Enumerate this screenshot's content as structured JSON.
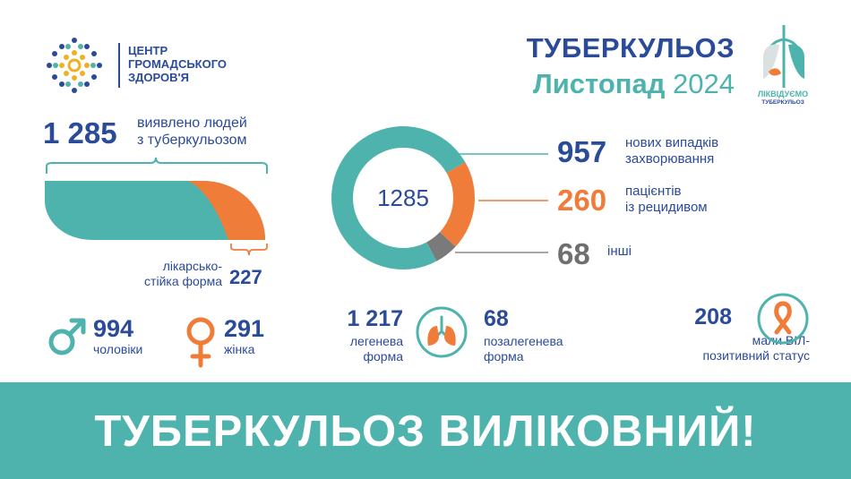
{
  "header": {
    "org_lines": [
      "ЦЕНТР",
      "ГРОМАДСЬКОГО",
      "ЗДОРОВ'Я"
    ],
    "title": "ТУБЕРКУЛЬОЗ",
    "month": "Листопад",
    "year": "2024",
    "campaign_line1": "ЛІКВІДУЄМО",
    "campaign_line2": "ТУБЕРКУЛЬОЗ"
  },
  "total": {
    "value": "1 285",
    "label_line1": "виявлено людей",
    "label_line2": "з туберкульозом"
  },
  "drug_resistant": {
    "label_line1": "лікарсько-",
    "label_line2": "стійка форма",
    "value": "227",
    "share": 0.177
  },
  "gender": {
    "men_value": "994",
    "men_label": "чоловіки",
    "women_value": "291",
    "women_label": "жінка"
  },
  "forms": {
    "pulmonary_value": "1 217",
    "pulmonary_label_line1": "легенева",
    "pulmonary_label_line2": "форма",
    "extra_value": "68",
    "extra_label_line1": "позалегенева",
    "extra_label_line2": "форма"
  },
  "hiv": {
    "value": "208",
    "label_line1": "мали ВІЛ-",
    "label_line2": "позитивний статус"
  },
  "legend": {
    "new_value": "957",
    "new_line1": "нових випадків",
    "new_line2": "захворювання",
    "relapse_value": "260",
    "relapse_line1": "пацієнтів",
    "relapse_line2": "із рецидивом",
    "other_value": "68",
    "other_line1": "інші"
  },
  "colors": {
    "navy": "#2a4a9a",
    "teal": "#4db3ac",
    "orange": "#f07c3a",
    "grey": "#7a7a7a"
  },
  "chart_data": {
    "type": "pie",
    "center_label": "1285",
    "slices": [
      {
        "name": "нових випадків захворювання",
        "value": 957,
        "color": "#4db3ac"
      },
      {
        "name": "пацієнтів із рецидивом",
        "value": 260,
        "color": "#f07c3a"
      },
      {
        "name": "інші",
        "value": 68,
        "color": "#7a7a7a"
      }
    ]
  },
  "banner": {
    "text": "ТУБЕРКУЛЬОЗ ВИЛІКОВНИЙ!"
  }
}
